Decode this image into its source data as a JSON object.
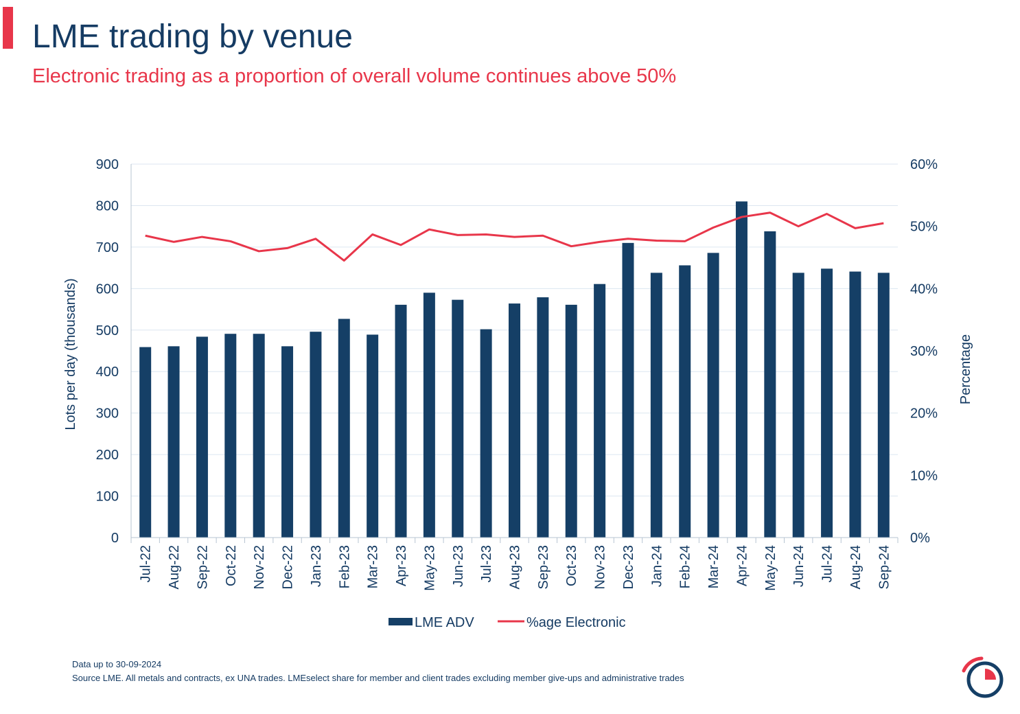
{
  "header": {
    "title": "LME trading by venue",
    "subtitle": "Electronic trading as a proportion of overall volume continues above 50%"
  },
  "colors": {
    "bar": "#153f66",
    "line": "#e8364a",
    "text": "#153b63",
    "grid": "#dce6f0",
    "accent": "#e8364a"
  },
  "chart_data": {
    "type": "bar",
    "categories": [
      "Jul-22",
      "Aug-22",
      "Sep-22",
      "Oct-22",
      "Nov-22",
      "Dec-22",
      "Jan-23",
      "Feb-23",
      "Mar-23",
      "Apr-23",
      "May-23",
      "Jun-23",
      "Jul-23",
      "Aug-23",
      "Sep-23",
      "Oct-23",
      "Nov-23",
      "Dec-23",
      "Jan-24",
      "Feb-24",
      "Mar-24",
      "Apr-24",
      "May-24",
      "Jun-24",
      "Jul-24",
      "Aug-24",
      "Sep-24"
    ],
    "series": [
      {
        "name": "LME ADV",
        "type": "bar",
        "axis": "left",
        "values": [
          459,
          461,
          484,
          491,
          491,
          461,
          496,
          527,
          489,
          561,
          590,
          573,
          502,
          564,
          579,
          561,
          611,
          710,
          638,
          656,
          686,
          810,
          738,
          638,
          648,
          641,
          638
        ]
      },
      {
        "name": "%age Electronic",
        "type": "line",
        "axis": "right",
        "values": [
          48.5,
          47.5,
          48.3,
          47.6,
          46.0,
          46.5,
          48.0,
          44.5,
          48.7,
          47.0,
          49.5,
          48.6,
          48.7,
          48.3,
          48.5,
          46.8,
          47.5,
          48.0,
          47.7,
          47.6,
          49.8,
          51.5,
          52.2,
          50.0,
          52.0,
          49.7,
          50.5
        ]
      }
    ],
    "ylabel": "Lots per day (thousands)",
    "ylim": [
      0,
      900
    ],
    "yticks": [
      "0",
      "100",
      "200",
      "300",
      "400",
      "500",
      "600",
      "700",
      "800",
      "900"
    ],
    "y2label": "Percentage",
    "y2lim": [
      0,
      60
    ],
    "y2ticks": [
      "0%",
      "10%",
      "20%",
      "30%",
      "40%",
      "50%",
      "60%"
    ],
    "grid": true,
    "legend_position": "bottom"
  },
  "footer": {
    "data_note": "Data up to 30-09-2024",
    "source": "Source LME. All metals and contracts, ex UNA trades. LMEselect share for member and client trades excluding member give-ups and administrative trades"
  }
}
